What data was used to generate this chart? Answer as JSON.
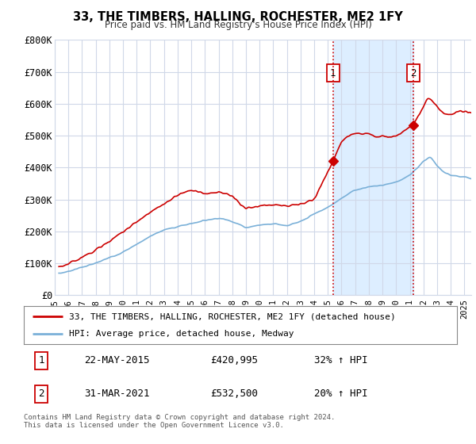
{
  "title": "33, THE TIMBERS, HALLING, ROCHESTER, ME2 1FY",
  "subtitle": "Price paid vs. HM Land Registry's House Price Index (HPI)",
  "ylabel_ticks": [
    "£0",
    "£100K",
    "£200K",
    "£300K",
    "£400K",
    "£500K",
    "£600K",
    "£700K",
    "£800K"
  ],
  "ytick_values": [
    0,
    100000,
    200000,
    300000,
    400000,
    500000,
    600000,
    700000,
    800000
  ],
  "ylim": [
    0,
    800000
  ],
  "xlim_start": 1995.3,
  "xlim_end": 2025.5,
  "background_color": "#ffffff",
  "plot_bg_color": "#ffffff",
  "grid_color": "#d0d8e8",
  "line1_color": "#cc0000",
  "line2_color": "#7ab0d8",
  "shade_color": "#ddeeff",
  "vline_color": "#cc0000",
  "sale1_x": 2015.37,
  "sale1_y": 420995,
  "sale1_label": "1",
  "sale2_x": 2021.25,
  "sale2_y": 532500,
  "sale2_label": "2",
  "legend_line1": "33, THE TIMBERS, HALLING, ROCHESTER, ME2 1FY (detached house)",
  "legend_line2": "HPI: Average price, detached house, Medway",
  "table_row1_num": "1",
  "table_row1_date": "22-MAY-2015",
  "table_row1_price": "£420,995",
  "table_row1_hpi": "32% ↑ HPI",
  "table_row2_num": "2",
  "table_row2_date": "31-MAR-2021",
  "table_row2_price": "£532,500",
  "table_row2_hpi": "20% ↑ HPI",
  "footer": "Contains HM Land Registry data © Crown copyright and database right 2024.\nThis data is licensed under the Open Government Licence v3.0.",
  "xtick_years": [
    1995,
    1996,
    1997,
    1998,
    1999,
    2000,
    2001,
    2002,
    2003,
    2004,
    2005,
    2006,
    2007,
    2008,
    2009,
    2010,
    2011,
    2012,
    2013,
    2014,
    2015,
    2016,
    2017,
    2018,
    2019,
    2020,
    2021,
    2022,
    2023,
    2024,
    2025
  ]
}
